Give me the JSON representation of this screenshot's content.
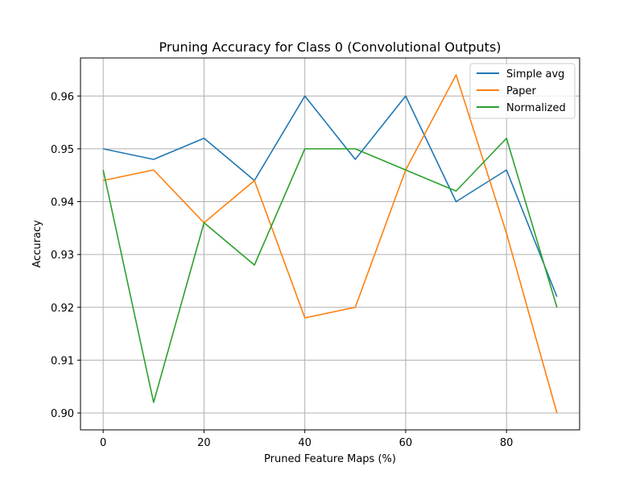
{
  "chart_data": {
    "type": "line",
    "title": "Pruning Accuracy for Class 0 (Convolutional Outputs)",
    "xlabel": "Pruned Feature Maps (%)",
    "ylabel": "Accuracy",
    "x": [
      0,
      10,
      20,
      30,
      40,
      50,
      60,
      70,
      80,
      90
    ],
    "xlim": [
      -4.5,
      94.5
    ],
    "ylim": [
      0.8968,
      0.9672
    ],
    "xticks": [
      0,
      20,
      40,
      60,
      80
    ],
    "xtick_labels": [
      "0",
      "20",
      "40",
      "60",
      "80"
    ],
    "yticks": [
      0.9,
      0.91,
      0.92,
      0.93,
      0.94,
      0.95,
      0.96
    ],
    "ytick_labels": [
      "0.90",
      "0.91",
      "0.92",
      "0.93",
      "0.94",
      "0.95",
      "0.96"
    ],
    "grid": true,
    "legend_position": "top-right",
    "series": [
      {
        "name": "Simple avg",
        "color": "#1f77b4",
        "values": [
          0.95,
          0.948,
          0.952,
          0.944,
          0.96,
          0.948,
          0.96,
          0.94,
          0.946,
          0.922
        ]
      },
      {
        "name": "Paper",
        "color": "#ff7f0e",
        "values": [
          0.944,
          0.946,
          0.936,
          0.944,
          0.918,
          0.92,
          0.946,
          0.964,
          0.934,
          0.9
        ]
      },
      {
        "name": "Normalized",
        "color": "#2ca02c",
        "values": [
          0.946,
          0.902,
          0.936,
          0.928,
          0.95,
          0.95,
          0.946,
          0.942,
          0.952,
          0.92
        ]
      }
    ]
  }
}
